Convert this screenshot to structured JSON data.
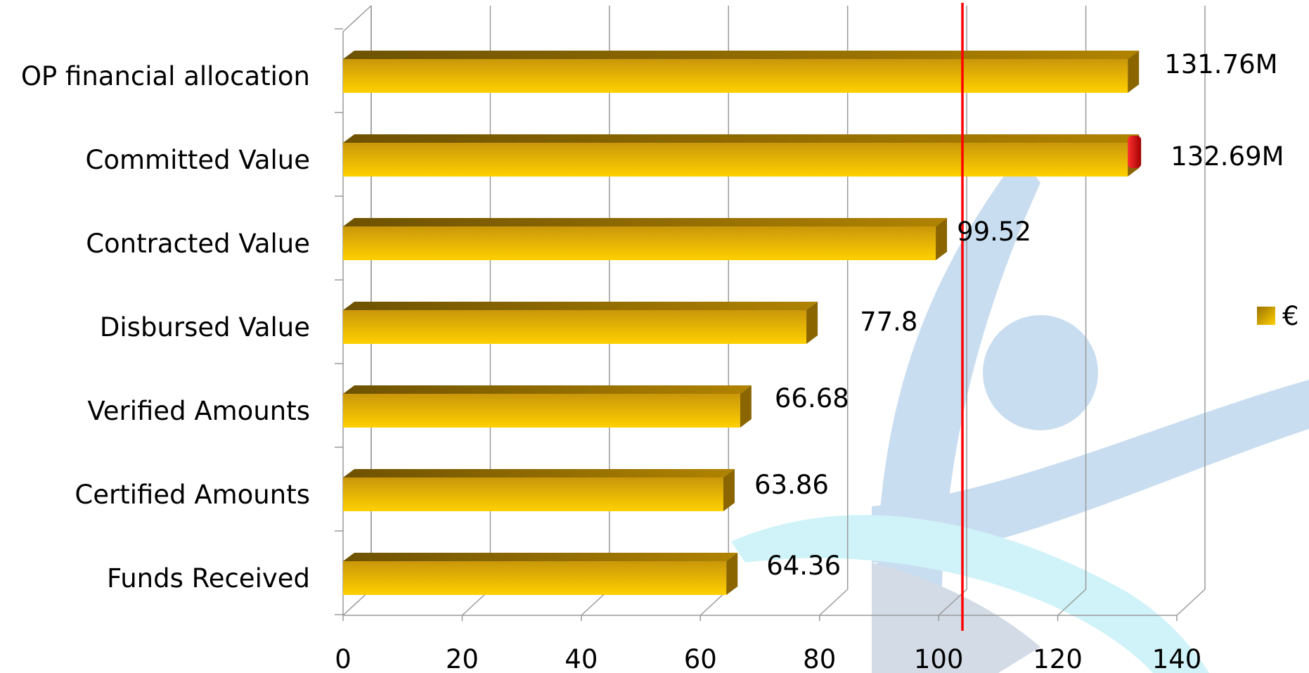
{
  "chart_data": {
    "type": "bar",
    "orientation": "horizontal",
    "categories": [
      "OP financial allocation",
      "Committed Value",
      "Contracted Value",
      "Disbursed Value",
      "Verified Amounts",
      "Certified Amounts",
      "Funds Received"
    ],
    "series": [
      {
        "name": "€",
        "values": [
          131.76,
          132.69,
          99.52,
          77.8,
          66.68,
          63.86,
          64.36
        ],
        "color": "#F2B705"
      }
    ],
    "data_labels": [
      "131.76M",
      "132.69M",
      "99.52",
      "77.8",
      "66.68",
      "63.86",
      "64.36"
    ],
    "xlim": [
      0,
      140
    ],
    "x_ticks": [
      0,
      20,
      40,
      60,
      80,
      100,
      120,
      140
    ],
    "grid": true,
    "reference_line": {
      "value": 104,
      "color": "#FF0000"
    },
    "overflow_marker_color": "#E00000",
    "legend": {
      "position": "right"
    },
    "title": "",
    "xlabel": "",
    "ylabel": ""
  }
}
